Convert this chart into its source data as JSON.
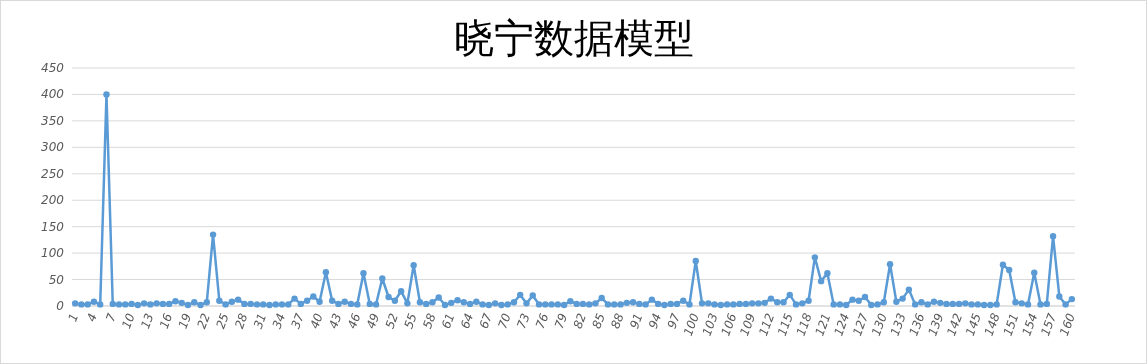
{
  "chart_data": {
    "type": "line",
    "title": "晓宁数据模型",
    "categories": [
      "1",
      null,
      null,
      "4",
      null,
      null,
      "7",
      null,
      null,
      "10",
      null,
      null,
      "13",
      null,
      null,
      "16",
      null,
      null,
      "19",
      null,
      null,
      "22",
      null,
      null,
      "25",
      null,
      null,
      "28",
      null,
      null,
      "31",
      null,
      null,
      "34",
      null,
      null,
      "37",
      null,
      null,
      "40",
      null,
      null,
      "43",
      null,
      null,
      "46",
      null,
      null,
      "49",
      null,
      null,
      "52",
      null,
      null,
      "55",
      null,
      null,
      "58",
      null,
      null,
      "61",
      null,
      null,
      "64",
      null,
      null,
      "67",
      null,
      null,
      "70",
      null,
      null,
      "73",
      null,
      null,
      "76",
      null,
      null,
      "79",
      null,
      null,
      "82",
      null,
      null,
      "85",
      null,
      null,
      "88",
      null,
      null,
      "91",
      null,
      null,
      "94",
      null,
      null,
      "97",
      null,
      null,
      "100",
      null,
      null,
      "103",
      null,
      null,
      "106",
      null,
      null,
      "109",
      null,
      null,
      "112",
      null,
      null,
      "115",
      null,
      null,
      "118",
      null,
      null,
      "121",
      null,
      null,
      "124",
      null,
      null,
      "127",
      null,
      null,
      "130",
      null,
      null,
      "133",
      null,
      null,
      "136",
      null,
      null,
      "139",
      null,
      null,
      "142",
      null,
      null,
      "145",
      null,
      null,
      "148",
      null,
      null,
      "151",
      null,
      null,
      "154",
      null,
      null,
      "157",
      null,
      null,
      "160"
    ],
    "series": [
      {
        "color": "#5b9bd5",
        "values": [
          5,
          3,
          3,
          8,
          3,
          400,
          4,
          3,
          3,
          4,
          2,
          5,
          3,
          5,
          4,
          4,
          9,
          6,
          2,
          7,
          2,
          7,
          135,
          10,
          3,
          8,
          12,
          4,
          4,
          3,
          3,
          2,
          3,
          3,
          3,
          14,
          4,
          10,
          18,
          8,
          64,
          10,
          4,
          8,
          4,
          3,
          62,
          4,
          3,
          52,
          17,
          10,
          28,
          5,
          77,
          7,
          4,
          7,
          16,
          2,
          6,
          11,
          7,
          4,
          8,
          3,
          2,
          5,
          2,
          3,
          7,
          21,
          5,
          20,
          3,
          3,
          3,
          3,
          2,
          9,
          4,
          4,
          3,
          5,
          15,
          3,
          3,
          3,
          6,
          7,
          4,
          3,
          12,
          4,
          2,
          4,
          4,
          10,
          3,
          85,
          5,
          5,
          3,
          2,
          3,
          3,
          4,
          4,
          5,
          5,
          6,
          14,
          7,
          7,
          21,
          3,
          5,
          10,
          92,
          47,
          62,
          3,
          3,
          2,
          12,
          10,
          17,
          2,
          3,
          7,
          79,
          8,
          14,
          31,
          3,
          7,
          3,
          8,
          6,
          4,
          4,
          4,
          5,
          3,
          3,
          2,
          2,
          3,
          78,
          68,
          7,
          5,
          3,
          63,
          3,
          4,
          132,
          18,
          3,
          13
        ]
      }
    ],
    "ylim": [
      0,
      450
    ],
    "yticks": [
      0,
      50,
      100,
      150,
      200,
      250,
      300,
      350,
      400,
      450
    ],
    "grid": "y",
    "marker": "circle",
    "line_style": "solid"
  }
}
